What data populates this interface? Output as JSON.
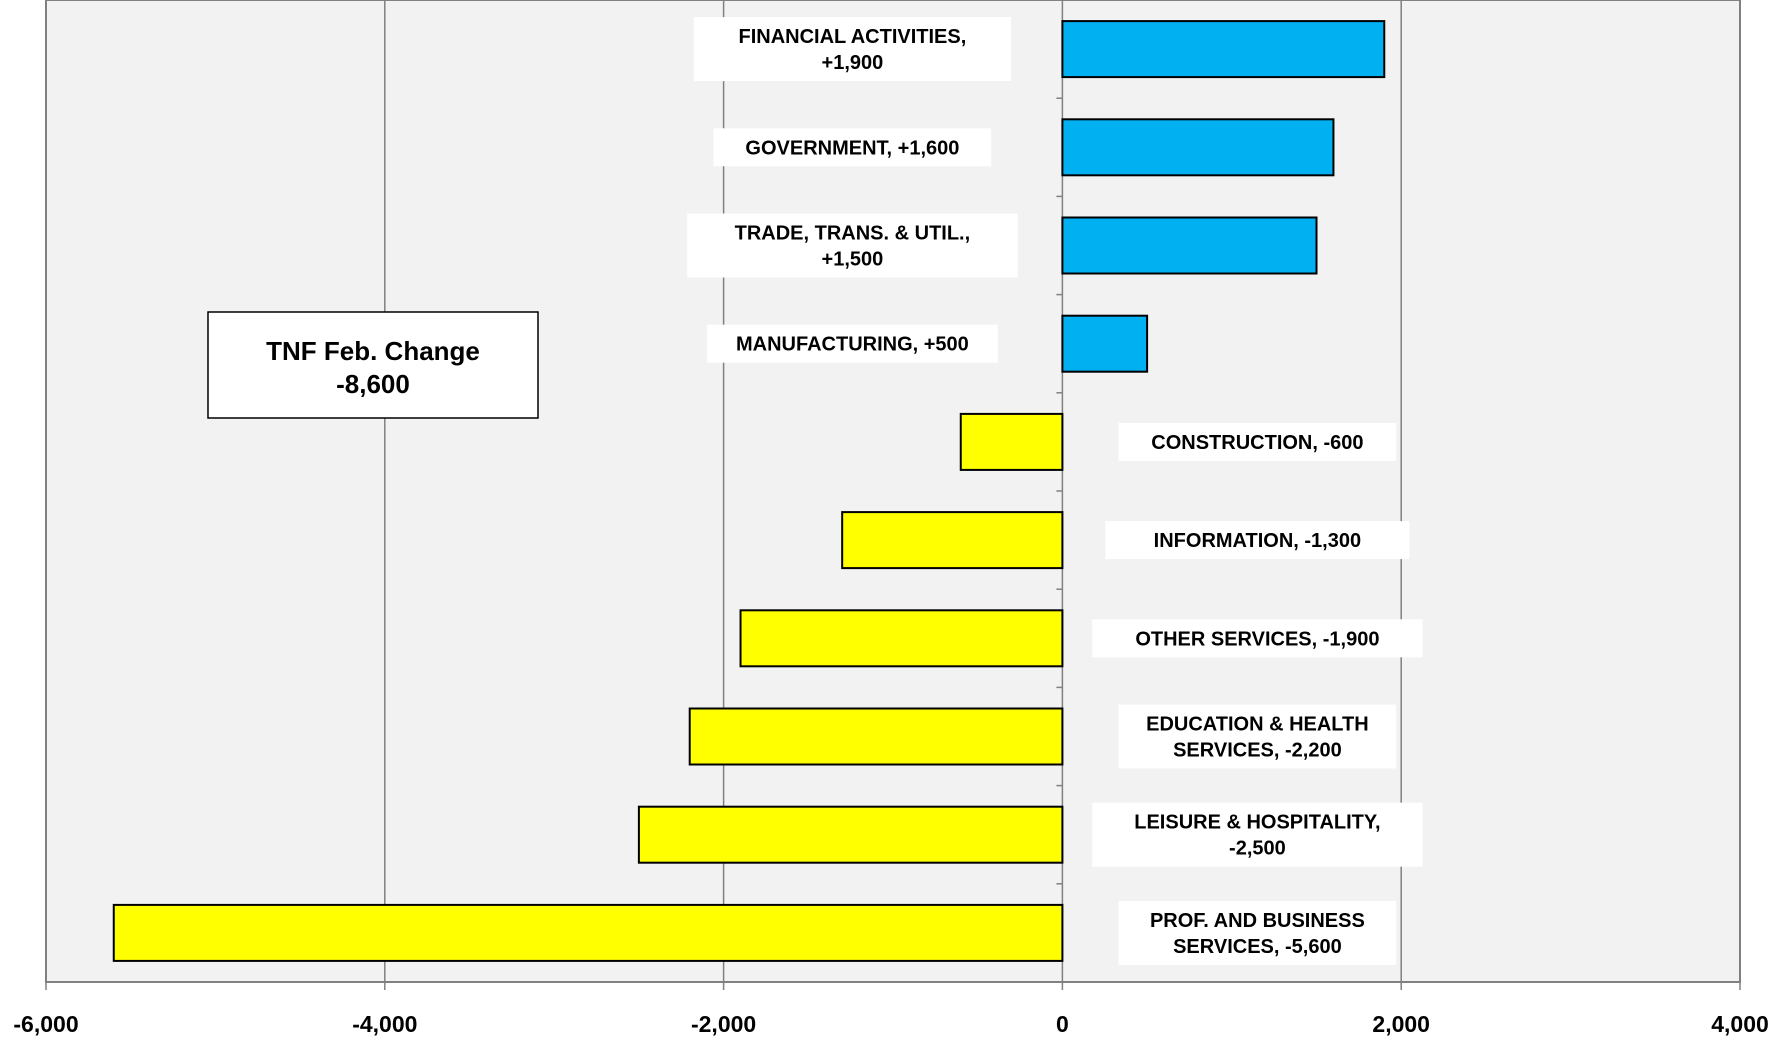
{
  "chart_data": {
    "type": "bar",
    "orientation": "horizontal",
    "xlim": [
      -6000,
      4000
    ],
    "x_ticks": [
      -6000,
      -4000,
      -2000,
      0,
      2000,
      4000
    ],
    "x_tick_labels": [
      "-6,000",
      "-4,000",
      "-2,000",
      "0",
      "2,000",
      "4,000"
    ],
    "grid": "vertical",
    "categories": [
      "FINANCIAL ACTIVITIES",
      "GOVERNMENT",
      "TRADE, TRANS. & UTIL.",
      "MANUFACTURING",
      "CONSTRUCTION",
      "INFORMATION",
      "OTHER SERVICES",
      "EDUCATION & HEALTH SERVICES",
      "LEISURE & HOSPITALITY",
      "PROF. AND BUSINESS SERVICES"
    ],
    "values": [
      1900,
      1600,
      1500,
      500,
      -600,
      -1300,
      -1900,
      -2200,
      -2500,
      -5600
    ],
    "bar_labels": [
      [
        "FINANCIAL ACTIVITIES,",
        "+1,900"
      ],
      [
        "GOVERNMENT, +1,600"
      ],
      [
        "TRADE, TRANS. & UTIL.,",
        "+1,500"
      ],
      [
        "MANUFACTURING, +500"
      ],
      [
        "CONSTRUCTION, -600"
      ],
      [
        "INFORMATION,  -1,300"
      ],
      [
        "OTHER SERVICES, -1,900"
      ],
      [
        "EDUCATION & HEALTH",
        "SERVICES, -2,200"
      ],
      [
        "LEISURE & HOSPITALITY,",
        "-2,500"
      ],
      [
        "PROF. AND BUSINESS",
        "SERVICES, -5,600"
      ]
    ],
    "annotation": [
      "TNF Feb. Change",
      "-8,600"
    ],
    "colors": {
      "positive": "#00b0f0",
      "negative": "#ffff00",
      "plot_background": "#f2f2f2",
      "gridline": "#808080"
    }
  }
}
